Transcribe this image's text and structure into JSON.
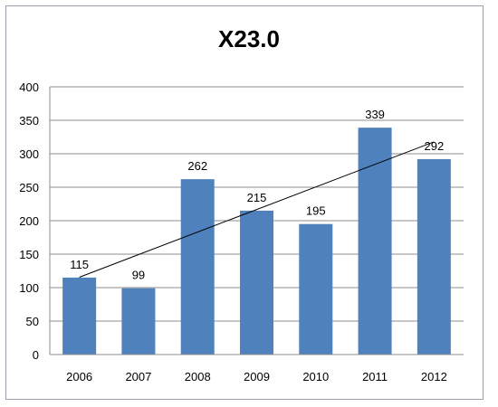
{
  "chart_data": {
    "type": "bar",
    "title": "X23.0",
    "xlabel": "",
    "ylabel": "",
    "categories": [
      "2006",
      "2007",
      "2008",
      "2009",
      "2010",
      "2011",
      "2012"
    ],
    "series": [
      {
        "values": [
          115,
          99,
          262,
          215,
          195,
          339,
          292
        ],
        "color": "#4f81bd"
      }
    ],
    "trendline": {
      "type": "linear",
      "color": "#000000"
    },
    "ylim": [
      0,
      400
    ],
    "yticks": [
      0,
      50,
      100,
      150,
      200,
      250,
      300,
      350,
      400
    ],
    "grid": true,
    "data_labels": true,
    "legend": "none"
  }
}
